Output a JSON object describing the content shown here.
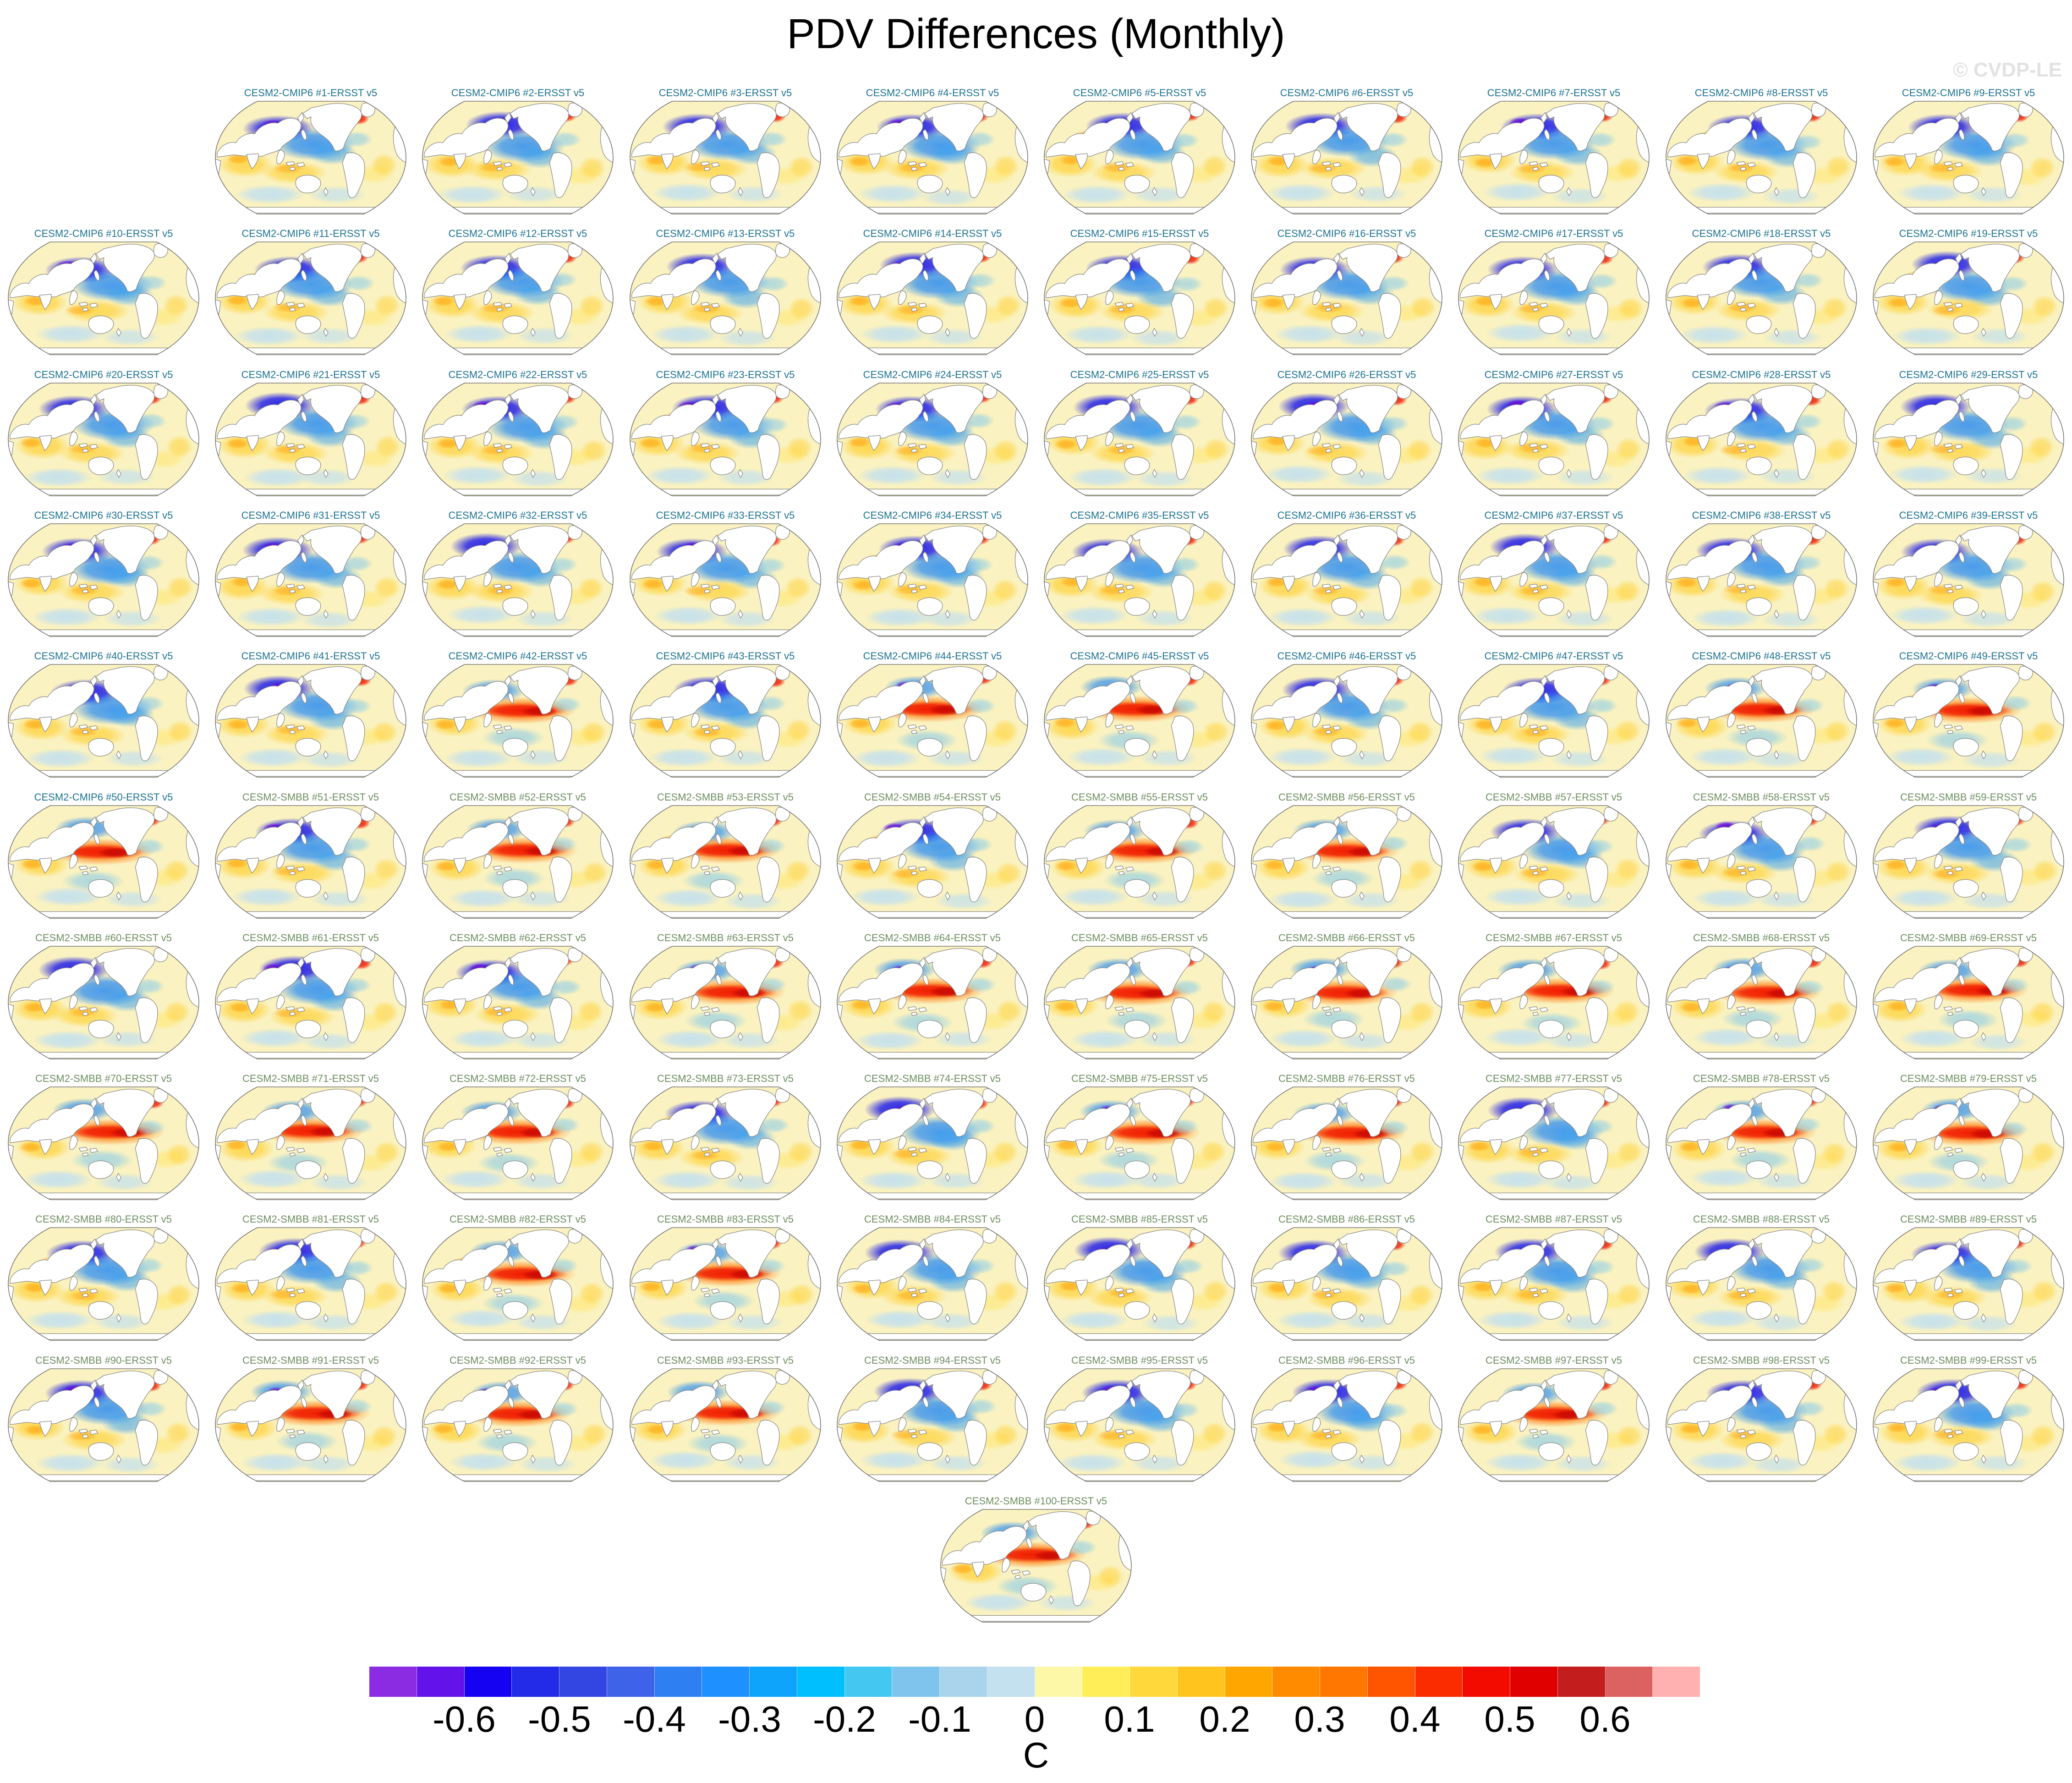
{
  "title": "PDV Differences (Monthly)",
  "watermark": "© CVDP-LE",
  "label_colors": {
    "cmip6": "#1d7291",
    "smbb": "#6d8e60"
  },
  "panels": [
    {
      "label": "CESM2-CMIP6 #1-ERSST v5",
      "group": "cmip6"
    },
    {
      "label": "CESM2-CMIP6 #2-ERSST v5",
      "group": "cmip6"
    },
    {
      "label": "CESM2-CMIP6 #3-ERSST v5",
      "group": "cmip6"
    },
    {
      "label": "CESM2-CMIP6 #4-ERSST v5",
      "group": "cmip6"
    },
    {
      "label": "CESM2-CMIP6 #5-ERSST v5",
      "group": "cmip6"
    },
    {
      "label": "CESM2-CMIP6 #6-ERSST v5",
      "group": "cmip6"
    },
    {
      "label": "CESM2-CMIP6 #7-ERSST v5",
      "group": "cmip6"
    },
    {
      "label": "CESM2-CMIP6 #8-ERSST v5",
      "group": "cmip6"
    },
    {
      "label": "CESM2-CMIP6 #9-ERSST v5",
      "group": "cmip6"
    },
    {
      "label": "CESM2-CMIP6 #10-ERSST v5",
      "group": "cmip6"
    },
    {
      "label": "CESM2-CMIP6 #11-ERSST v5",
      "group": "cmip6"
    },
    {
      "label": "CESM2-CMIP6 #12-ERSST v5",
      "group": "cmip6"
    },
    {
      "label": "CESM2-CMIP6 #13-ERSST v5",
      "group": "cmip6"
    },
    {
      "label": "CESM2-CMIP6 #14-ERSST v5",
      "group": "cmip6"
    },
    {
      "label": "CESM2-CMIP6 #15-ERSST v5",
      "group": "cmip6"
    },
    {
      "label": "CESM2-CMIP6 #16-ERSST v5",
      "group": "cmip6"
    },
    {
      "label": "CESM2-CMIP6 #17-ERSST v5",
      "group": "cmip6"
    },
    {
      "label": "CESM2-CMIP6 #18-ERSST v5",
      "group": "cmip6"
    },
    {
      "label": "CESM2-CMIP6 #19-ERSST v5",
      "group": "cmip6"
    },
    {
      "label": "CESM2-CMIP6 #20-ERSST v5",
      "group": "cmip6"
    },
    {
      "label": "CESM2-CMIP6 #21-ERSST v5",
      "group": "cmip6"
    },
    {
      "label": "CESM2-CMIP6 #22-ERSST v5",
      "group": "cmip6"
    },
    {
      "label": "CESM2-CMIP6 #23-ERSST v5",
      "group": "cmip6"
    },
    {
      "label": "CESM2-CMIP6 #24-ERSST v5",
      "group": "cmip6"
    },
    {
      "label": "CESM2-CMIP6 #25-ERSST v5",
      "group": "cmip6"
    },
    {
      "label": "CESM2-CMIP6 #26-ERSST v5",
      "group": "cmip6"
    },
    {
      "label": "CESM2-CMIP6 #27-ERSST v5",
      "group": "cmip6"
    },
    {
      "label": "CESM2-CMIP6 #28-ERSST v5",
      "group": "cmip6"
    },
    {
      "label": "CESM2-CMIP6 #29-ERSST v5",
      "group": "cmip6"
    },
    {
      "label": "CESM2-CMIP6 #30-ERSST v5",
      "group": "cmip6"
    },
    {
      "label": "CESM2-CMIP6 #31-ERSST v5",
      "group": "cmip6"
    },
    {
      "label": "CESM2-CMIP6 #32-ERSST v5",
      "group": "cmip6"
    },
    {
      "label": "CESM2-CMIP6 #33-ERSST v5",
      "group": "cmip6"
    },
    {
      "label": "CESM2-CMIP6 #34-ERSST v5",
      "group": "cmip6"
    },
    {
      "label": "CESM2-CMIP6 #35-ERSST v5",
      "group": "cmip6"
    },
    {
      "label": "CESM2-CMIP6 #36-ERSST v5",
      "group": "cmip6"
    },
    {
      "label": "CESM2-CMIP6 #37-ERSST v5",
      "group": "cmip6"
    },
    {
      "label": "CESM2-CMIP6 #38-ERSST v5",
      "group": "cmip6"
    },
    {
      "label": "CESM2-CMIP6 #39-ERSST v5",
      "group": "cmip6"
    },
    {
      "label": "CESM2-CMIP6 #40-ERSST v5",
      "group": "cmip6"
    },
    {
      "label": "CESM2-CMIP6 #41-ERSST v5",
      "group": "cmip6"
    },
    {
      "label": "CESM2-CMIP6 #42-ERSST v5",
      "group": "cmip6"
    },
    {
      "label": "CESM2-CMIP6 #43-ERSST v5",
      "group": "cmip6"
    },
    {
      "label": "CESM2-CMIP6 #44-ERSST v5",
      "group": "cmip6"
    },
    {
      "label": "CESM2-CMIP6 #45-ERSST v5",
      "group": "cmip6"
    },
    {
      "label": "CESM2-CMIP6 #46-ERSST v5",
      "group": "cmip6"
    },
    {
      "label": "CESM2-CMIP6 #47-ERSST v5",
      "group": "cmip6"
    },
    {
      "label": "CESM2-CMIP6 #48-ERSST v5",
      "group": "cmip6"
    },
    {
      "label": "CESM2-CMIP6 #49-ERSST v5",
      "group": "cmip6"
    },
    {
      "label": "CESM2-CMIP6 #50-ERSST v5",
      "group": "cmip6"
    },
    {
      "label": "CESM2-SMBB #51-ERSST v5",
      "group": "smbb"
    },
    {
      "label": "CESM2-SMBB #52-ERSST v5",
      "group": "smbb"
    },
    {
      "label": "CESM2-SMBB #53-ERSST v5",
      "group": "smbb"
    },
    {
      "label": "CESM2-SMBB #54-ERSST v5",
      "group": "smbb"
    },
    {
      "label": "CESM2-SMBB #55-ERSST v5",
      "group": "smbb"
    },
    {
      "label": "CESM2-SMBB #56-ERSST v5",
      "group": "smbb"
    },
    {
      "label": "CESM2-SMBB #57-ERSST v5",
      "group": "smbb"
    },
    {
      "label": "CESM2-SMBB #58-ERSST v5",
      "group": "smbb"
    },
    {
      "label": "CESM2-SMBB #59-ERSST v5",
      "group": "smbb"
    },
    {
      "label": "CESM2-SMBB #60-ERSST v5",
      "group": "smbb"
    },
    {
      "label": "CESM2-SMBB #61-ERSST v5",
      "group": "smbb"
    },
    {
      "label": "CESM2-SMBB #62-ERSST v5",
      "group": "smbb"
    },
    {
      "label": "CESM2-SMBB #63-ERSST v5",
      "group": "smbb"
    },
    {
      "label": "CESM2-SMBB #64-ERSST v5",
      "group": "smbb"
    },
    {
      "label": "CESM2-SMBB #65-ERSST v5",
      "group": "smbb"
    },
    {
      "label": "CESM2-SMBB #66-ERSST v5",
      "group": "smbb"
    },
    {
      "label": "CESM2-SMBB #67-ERSST v5",
      "group": "smbb"
    },
    {
      "label": "CESM2-SMBB #68-ERSST v5",
      "group": "smbb"
    },
    {
      "label": "CESM2-SMBB #69-ERSST v5",
      "group": "smbb"
    },
    {
      "label": "CESM2-SMBB #70-ERSST v5",
      "group": "smbb"
    },
    {
      "label": "CESM2-SMBB #71-ERSST v5",
      "group": "smbb"
    },
    {
      "label": "CESM2-SMBB #72-ERSST v5",
      "group": "smbb"
    },
    {
      "label": "CESM2-SMBB #73-ERSST v5",
      "group": "smbb"
    },
    {
      "label": "CESM2-SMBB #74-ERSST v5",
      "group": "smbb"
    },
    {
      "label": "CESM2-SMBB #75-ERSST v5",
      "group": "smbb"
    },
    {
      "label": "CESM2-SMBB #76-ERSST v5",
      "group": "smbb"
    },
    {
      "label": "CESM2-SMBB #77-ERSST v5",
      "group": "smbb"
    },
    {
      "label": "CESM2-SMBB #78-ERSST v5",
      "group": "smbb"
    },
    {
      "label": "CESM2-SMBB #79-ERSST v5",
      "group": "smbb"
    },
    {
      "label": "CESM2-SMBB #80-ERSST v5",
      "group": "smbb"
    },
    {
      "label": "CESM2-SMBB #81-ERSST v5",
      "group": "smbb"
    },
    {
      "label": "CESM2-SMBB #82-ERSST v5",
      "group": "smbb"
    },
    {
      "label": "CESM2-SMBB #83-ERSST v5",
      "group": "smbb"
    },
    {
      "label": "CESM2-SMBB #84-ERSST v5",
      "group": "smbb"
    },
    {
      "label": "CESM2-SMBB #85-ERSST v5",
      "group": "smbb"
    },
    {
      "label": "CESM2-SMBB #86-ERSST v5",
      "group": "smbb"
    },
    {
      "label": "CESM2-SMBB #87-ERSST v5",
      "group": "smbb"
    },
    {
      "label": "CESM2-SMBB #88-ERSST v5",
      "group": "smbb"
    },
    {
      "label": "CESM2-SMBB #89-ERSST v5",
      "group": "smbb"
    },
    {
      "label": "CESM2-SMBB #90-ERSST v5",
      "group": "smbb"
    },
    {
      "label": "CESM2-SMBB #91-ERSST v5",
      "group": "smbb"
    },
    {
      "label": "CESM2-SMBB #92-ERSST v5",
      "group": "smbb"
    },
    {
      "label": "CESM2-SMBB #93-ERSST v5",
      "group": "smbb"
    },
    {
      "label": "CESM2-SMBB #94-ERSST v5",
      "group": "smbb"
    },
    {
      "label": "CESM2-SMBB #95-ERSST v5",
      "group": "smbb"
    },
    {
      "label": "CESM2-SMBB #96-ERSST v5",
      "group": "smbb"
    },
    {
      "label": "CESM2-SMBB #97-ERSST v5",
      "group": "smbb"
    },
    {
      "label": "CESM2-SMBB #98-ERSST v5",
      "group": "smbb"
    },
    {
      "label": "CESM2-SMBB #99-ERSST v5",
      "group": "smbb"
    },
    {
      "label": "CESM2-SMBB #100-ERSST v5",
      "group": "smbb"
    }
  ],
  "colorbar": {
    "unit_label": "C",
    "tick_labels": [
      "-0.6",
      "-0.5",
      "-0.4",
      "-0.3",
      "-0.2",
      "-0.1",
      "0",
      "0.1",
      "0.2",
      "0.3",
      "0.4",
      "0.5",
      "0.6"
    ],
    "colors": [
      "#8b2be2",
      "#6312ea",
      "#1602f2",
      "#232ae8",
      "#3346e2",
      "#3f63e8",
      "#2e7ff2",
      "#1e90ff",
      "#0fa4fc",
      "#00bfff",
      "#44c8f1",
      "#7fc4ec",
      "#a9d4ec",
      "#c3e1ee",
      "#fdf8a8",
      "#ffee58",
      "#ffd93b",
      "#ffc41e",
      "#ffa600",
      "#ff8c00",
      "#ff7600",
      "#ff5400",
      "#fb2c00",
      "#f30b00",
      "#e00000",
      "#c31d1d",
      "#dc6262",
      "#ffb0b0"
    ]
  },
  "chart_data": {
    "type": "heatmap",
    "subtype": "global-map-small-multiples",
    "title": "PDV Differences (Monthly)",
    "n_panels": 100,
    "panel_label_format": "CESM2-CMIP6 #<1-50>-ERSST v5 and CESM2-SMBB #<51-100>-ERSST v5",
    "grid": "10 columns x 10 rows (first cell of row 1 empty), panel #100 centered on its own row",
    "colorbar_tick_values": [
      -0.6,
      -0.5,
      -0.4,
      -0.3,
      -0.2,
      -0.1,
      0,
      0.1,
      0.2,
      0.3,
      0.4,
      0.5,
      0.6
    ],
    "colorbar_segment_step": 0.05,
    "colorbar_range": [
      -0.7,
      0.7
    ],
    "units": "C",
    "legend_position": "bottom-center horizontal colorbar",
    "notes": "Each panel is a Pacific-centered world map of Pacific Decadal Variability SST differences; warm anomalies yellow-red, cold anomalies blue-purple, land white"
  }
}
